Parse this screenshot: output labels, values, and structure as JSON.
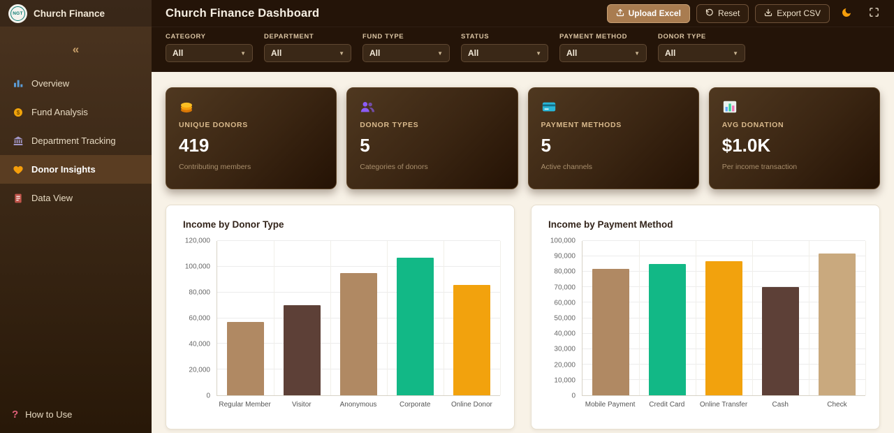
{
  "brand": {
    "logo_text": "NGT",
    "name": "Church Finance"
  },
  "topbar": {
    "title": "Church Finance Dashboard",
    "upload_label": "Upload Excel",
    "reset_label": "Reset",
    "export_label": "Export CSV",
    "icons": [
      "upload-icon",
      "reset-icon",
      "download-icon",
      "moon-icon",
      "fullscreen-icon"
    ]
  },
  "sidebar": {
    "collapse_glyph": "«",
    "items": [
      {
        "label": "Overview",
        "icon": "bar-chart-icon",
        "active": false
      },
      {
        "label": "Fund Analysis",
        "icon": "coin-icon",
        "active": false
      },
      {
        "label": "Department Tracking",
        "icon": "bank-icon",
        "active": false
      },
      {
        "label": "Donor Insights",
        "icon": "heart-icon",
        "active": true
      },
      {
        "label": "Data View",
        "icon": "document-icon",
        "active": false
      }
    ],
    "help": {
      "label": "How to Use",
      "icon": "question-icon",
      "glyph": "?"
    }
  },
  "filters": [
    {
      "label": "CATEGORY",
      "value": "All"
    },
    {
      "label": "DEPARTMENT",
      "value": "All"
    },
    {
      "label": "FUND TYPE",
      "value": "All"
    },
    {
      "label": "STATUS",
      "value": "All"
    },
    {
      "label": "PAYMENT METHOD",
      "value": "All"
    },
    {
      "label": "DONOR TYPE",
      "value": "All"
    }
  ],
  "stats": [
    {
      "icon": "coins-icon",
      "label": "UNIQUE DONORS",
      "value": "419",
      "caption": "Contributing members"
    },
    {
      "icon": "donors-icon",
      "label": "DONOR TYPES",
      "value": "5",
      "caption": "Categories of donors"
    },
    {
      "icon": "payment-card-icon",
      "label": "PAYMENT METHODS",
      "value": "5",
      "caption": "Active channels"
    },
    {
      "icon": "stats-chart-icon",
      "label": "AVG DONATION",
      "value": "$1.0K",
      "caption": "Per income transaction"
    }
  ],
  "colors": {
    "tan": "#b08963",
    "dark_brown": "#5d4037",
    "green": "#12b886",
    "orange": "#f2a20d",
    "light_tan": "#c9a97e",
    "accent": "#a97c50"
  },
  "chart_data": [
    {
      "type": "bar",
      "title": "Income by Donor Type",
      "categories": [
        "Regular Member",
        "Visitor",
        "Anonymous",
        "Corporate",
        "Online Donor"
      ],
      "values": [
        57000,
        70000,
        95000,
        107000,
        86000
      ],
      "colors": [
        "#b08963",
        "#5d4037",
        "#b08963",
        "#12b886",
        "#f2a20d"
      ],
      "xlabel": "",
      "ylabel": "",
      "ylim": [
        0,
        120000
      ],
      "ytick_step": 20000,
      "grid": true,
      "legend": false
    },
    {
      "type": "bar",
      "title": "Income by Payment Method",
      "categories": [
        "Mobile Payment",
        "Credit Card",
        "Online Transfer",
        "Cash",
        "Check"
      ],
      "values": [
        82000,
        85000,
        87000,
        70000,
        92000
      ],
      "colors": [
        "#b08963",
        "#12b886",
        "#f2a20d",
        "#5d4037",
        "#c9a97e"
      ],
      "xlabel": "",
      "ylabel": "",
      "ylim": [
        0,
        100000
      ],
      "ytick_step": 10000,
      "grid": true,
      "legend": false
    }
  ]
}
